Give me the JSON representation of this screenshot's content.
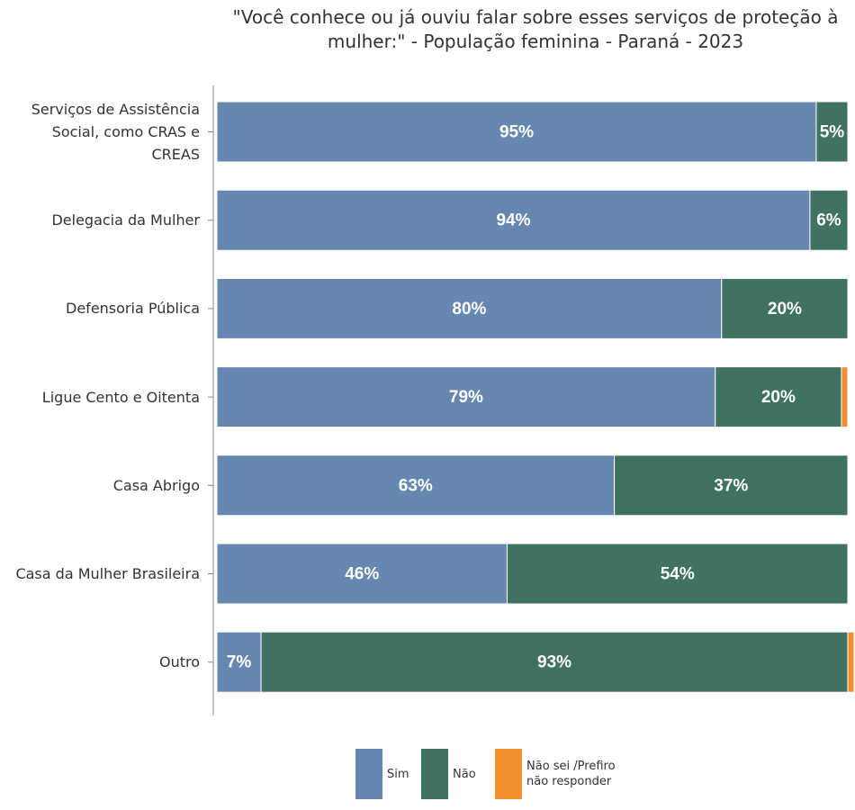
{
  "chart_data": {
    "type": "stacked_bar_horizontal",
    "title": "\"Você conhece ou já ouviu falar sobre esses serviços de proteção à mulher:\" - População feminina - Paraná - 2023",
    "categories": [
      "Serviços de Assistência Social, como CRAS e CREAS",
      "Delegacia da Mulher",
      "Defensoria Pública",
      "Ligue Cento e Oitenta",
      "Casa Abrigo",
      "Casa da Mulher Brasileira",
      "Outro"
    ],
    "series": [
      {
        "name": "Sim",
        "color": "#6688b0",
        "values": [
          95,
          94,
          80,
          79,
          63,
          46,
          7
        ],
        "value_labels": [
          "95%",
          "94%",
          "80%",
          "79%",
          "63%",
          "46%",
          "7%"
        ]
      },
      {
        "name": "Não",
        "color": "#3f7262",
        "values": [
          5,
          6,
          20,
          20,
          37,
          54,
          93
        ],
        "value_labels": [
          "5%",
          "6%",
          "20%",
          "20%",
          "37%",
          "54%",
          "93%"
        ]
      },
      {
        "name": "Não sei /Prefiro não responder",
        "color": "#f28e2b",
        "values": [
          0,
          0,
          0,
          1,
          0,
          0,
          1
        ]
      }
    ]
  }
}
